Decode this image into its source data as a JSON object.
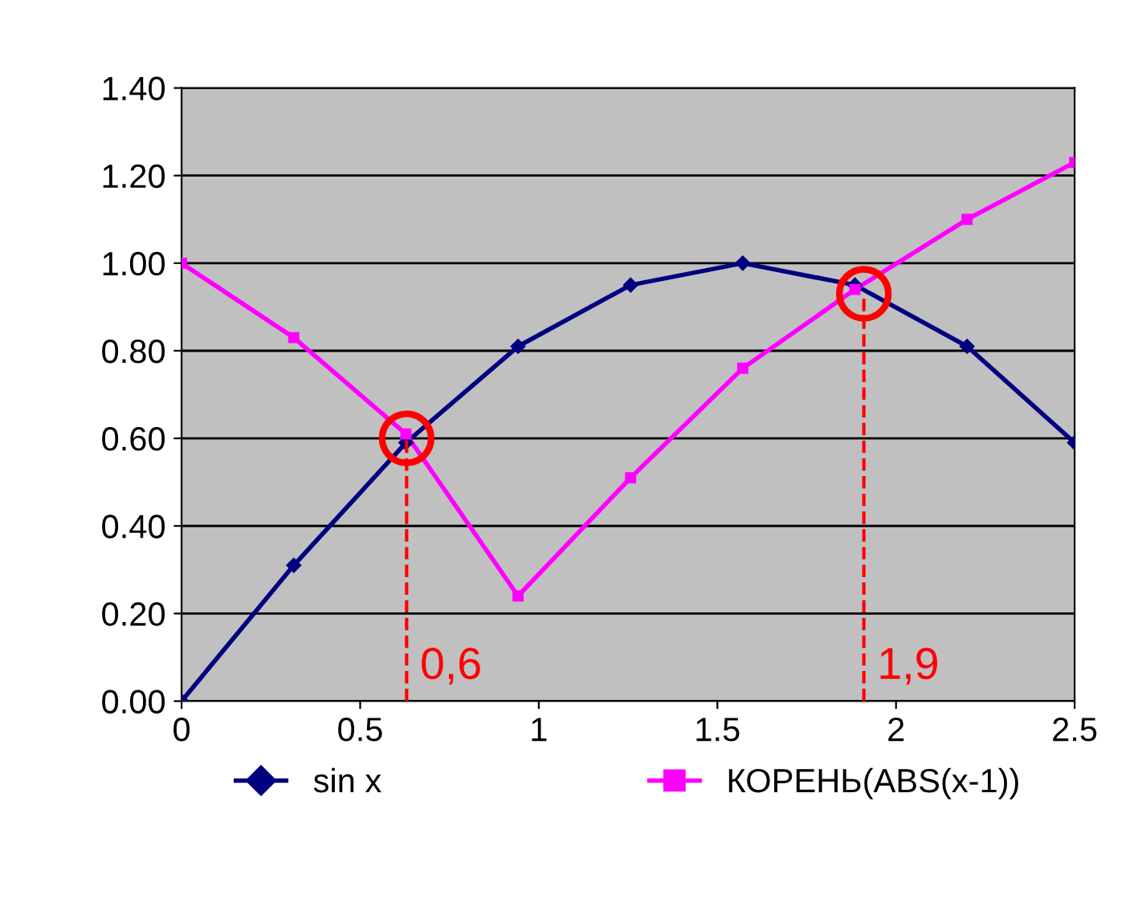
{
  "chart_data": {
    "type": "line",
    "x": [
      0,
      0.314,
      0.628,
      0.942,
      1.257,
      1.571,
      1.885,
      2.199,
      2.5
    ],
    "series": [
      {
        "name": "sin x",
        "color": "#000080",
        "marker": "diamond",
        "values": [
          0,
          0.31,
          0.59,
          0.81,
          0.95,
          1.0,
          0.95,
          0.81,
          0.59
        ]
      },
      {
        "name": "КОРЕНЬ(ABS(x-1))",
        "color": "#ff00ff",
        "marker": "square",
        "values": [
          1.0,
          0.83,
          0.61,
          0.24,
          0.51,
          0.76,
          0.94,
          1.1,
          1.23
        ]
      }
    ],
    "xlim": [
      0,
      2.5
    ],
    "xticks": [
      0,
      0.5,
      1,
      1.5,
      2,
      2.5
    ],
    "ylim": [
      0,
      1.4
    ],
    "yticks": [
      {
        "value": 0,
        "label": "0.00"
      },
      {
        "value": 0.2,
        "label": "0.20"
      },
      {
        "value": 0.4,
        "label": "0.40"
      },
      {
        "value": 0.6,
        "label": "0.60"
      },
      {
        "value": 0.8,
        "label": "0.80"
      },
      {
        "value": 1.0,
        "label": "1.00"
      },
      {
        "value": 1.2,
        "label": "1.20"
      },
      {
        "value": 1.4,
        "label": "1.40"
      }
    ],
    "grid": "y",
    "legend": "bottom",
    "line_style": "solid",
    "annotations": [
      {
        "text": "0,6",
        "x": 0.63,
        "y": 0.6
      },
      {
        "text": "1,9",
        "x": 1.91,
        "y": 0.93
      }
    ]
  }
}
